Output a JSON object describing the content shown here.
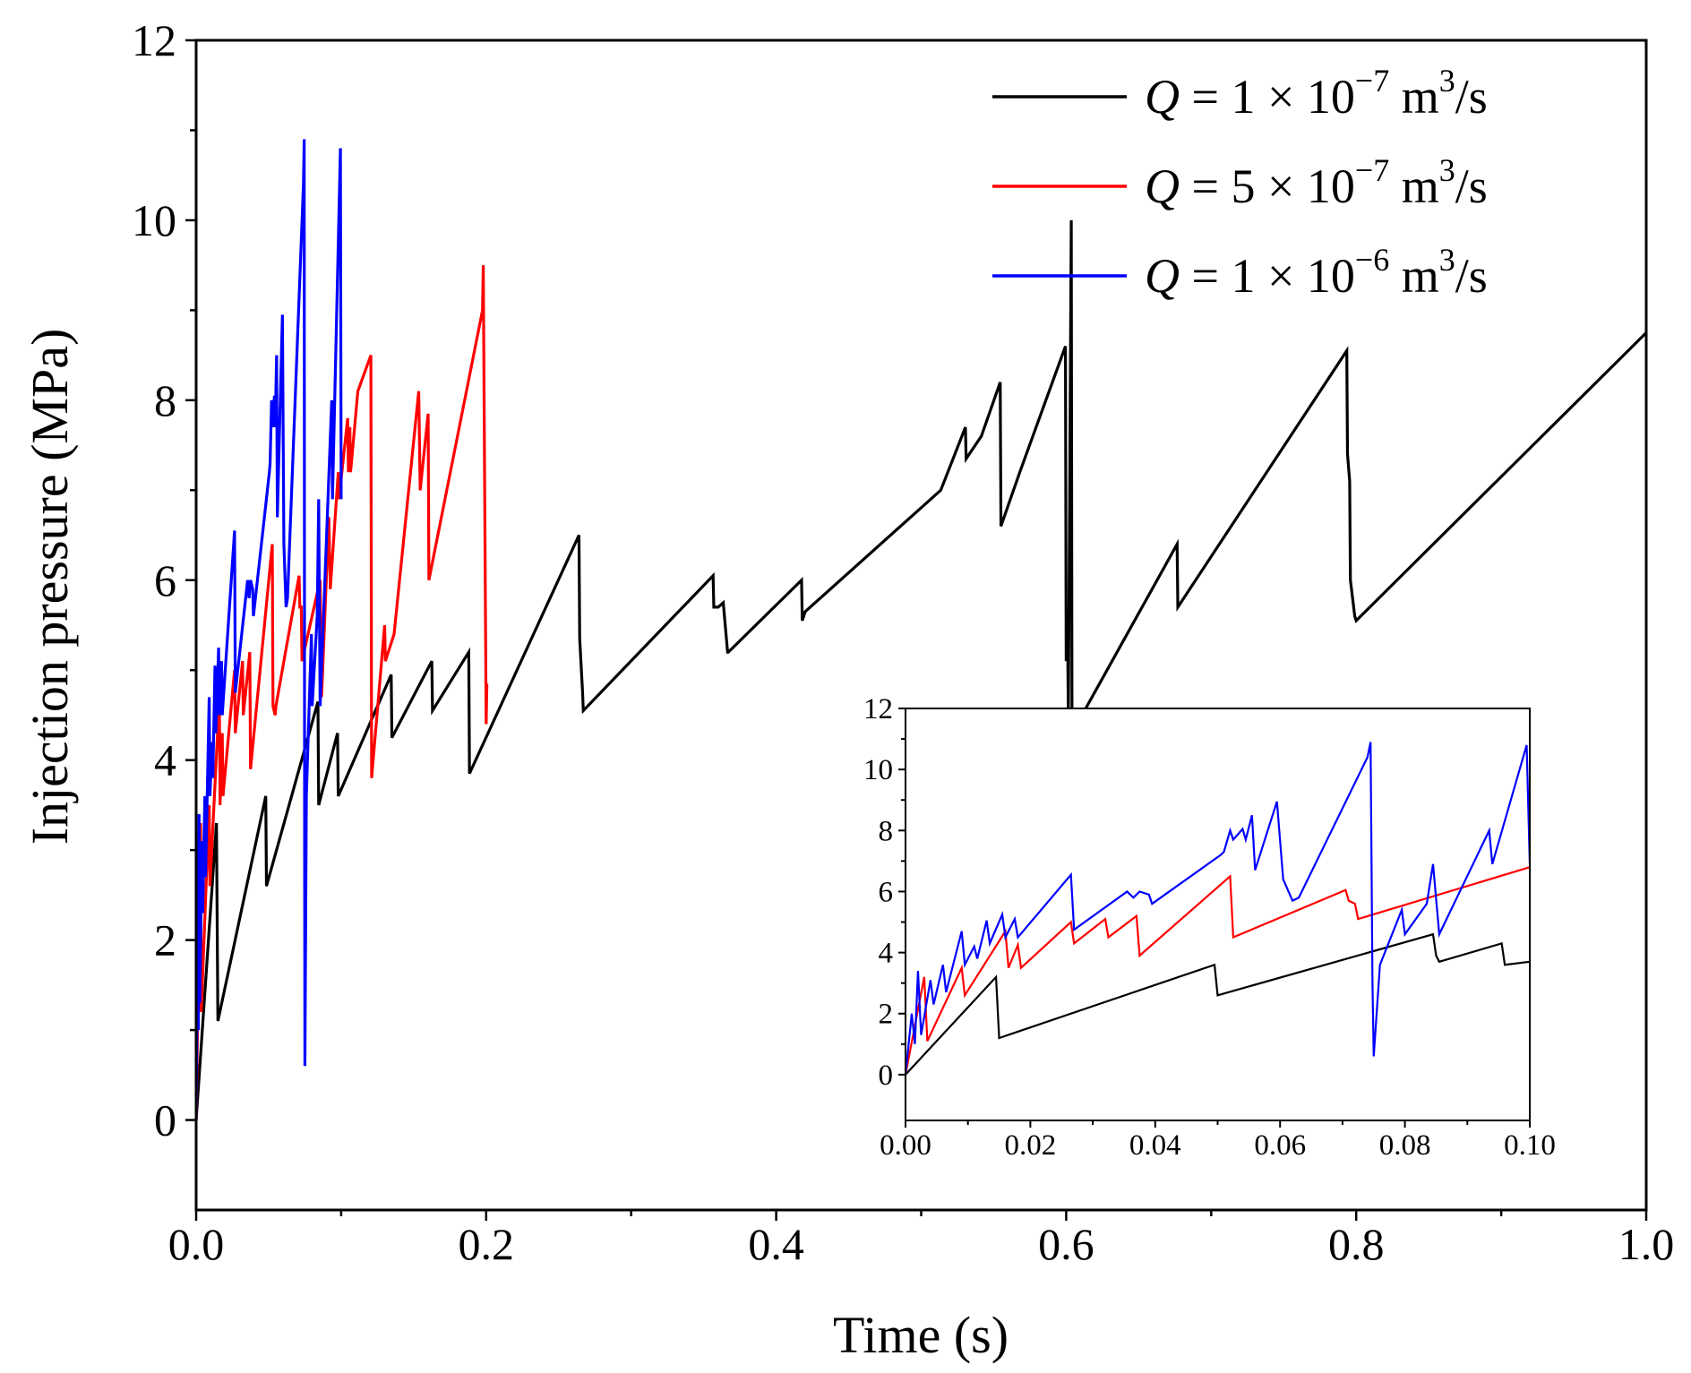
{
  "chart_data": [
    {
      "type": "line",
      "name": "main",
      "xlabel": "Time (s)",
      "ylabel": "Injection pressure (MPa)",
      "xlim": [
        0,
        1.0
      ],
      "ylim": [
        -1,
        12
      ],
      "xticks": [
        0,
        0.2,
        0.4,
        0.6,
        0.8,
        1.0
      ],
      "xtick_labels": [
        "0.0",
        "0.2",
        "0.4",
        "0.6",
        "0.8",
        "1.0"
      ],
      "yticks": [
        0,
        2,
        4,
        6,
        8,
        10,
        12
      ],
      "ytick_labels": [
        "0",
        "2",
        "4",
        "6",
        "8",
        "10",
        "12"
      ],
      "legend_position": "top-right",
      "legend": [
        {
          "prefix": "Q",
          "middle": " = 1 × 10",
          "exp": "−7",
          "unit": " m",
          "unit_exp": "3",
          "tail": "/s",
          "color": "#000000"
        },
        {
          "prefix": "Q",
          "middle": " = 5 × 10",
          "exp": "−7",
          "unit": " m",
          "unit_exp": "3",
          "tail": "/s",
          "color": "#ff0000"
        },
        {
          "prefix": "Q",
          "middle": " = 1 × 10",
          "exp": "−6",
          "unit": " m",
          "unit_exp": "3",
          "tail": "/s",
          "color": "#0000ff"
        }
      ],
      "series": [
        {
          "name": "Q = 1 × 10^-7 m^3/s",
          "color": "#000000",
          "x": [
            0,
            0.014,
            0.015,
            0.048,
            0.0485,
            0.084,
            0.0845,
            0.0975,
            0.098,
            0.1345,
            0.135,
            0.1625,
            0.163,
            0.188,
            0.1885,
            0.264,
            0.2645,
            0.2665,
            0.267,
            0.3565,
            0.357,
            0.36,
            0.3635,
            0.3665,
            0.367,
            0.4175,
            0.418,
            0.42,
            0.5135,
            0.5305,
            0.531,
            0.5415,
            0.5545,
            0.555,
            0.568,
            0.5995,
            0.6,
            0.601,
            0.6015,
            0.6035,
            0.604,
            0.6765,
            0.677,
            0.7935,
            0.794,
            0.7955,
            0.796,
            0.799,
            0.8,
            1.0
          ],
          "y": [
            0,
            3.3,
            1.1,
            3.6,
            2.6,
            4.65,
            3.5,
            4.3,
            3.6,
            4.95,
            4.25,
            5.1,
            4.55,
            5.2,
            3.85,
            6.5,
            5.35,
            4.75,
            4.55,
            6.05,
            5.7,
            5.7,
            5.75,
            5.2,
            5.2,
            6.0,
            5.55,
            5.65,
            7.0,
            7.7,
            7.35,
            7.6,
            8.2,
            6.6,
            7.2,
            8.6,
            5.1,
            5.3,
            4.5,
            10.0,
            4.3,
            6.4,
            5.7,
            8.55,
            7.4,
            7.1,
            6.0,
            5.6,
            5.55,
            8.75
          ]
        },
        {
          "name": "Q = 5 × 10^-7 m^3/s",
          "color": "#ff0000",
          "x": [
            0,
            0.003,
            0.0035,
            0.009,
            0.0095,
            0.016,
            0.0165,
            0.018,
            0.0185,
            0.0265,
            0.027,
            0.032,
            0.0325,
            0.037,
            0.0375,
            0.0525,
            0.053,
            0.0545,
            0.055,
            0.071,
            0.0715,
            0.0725,
            0.073,
            0.0855,
            0.0865,
            0.0915,
            0.0925,
            0.098,
            0.0985,
            0.1045,
            0.105,
            0.106,
            0.1065,
            0.1115,
            0.1205,
            0.121,
            0.13,
            0.1305,
            0.1365,
            0.1535,
            0.1545,
            0.16,
            0.1605,
            0.1975,
            0.198,
            0.2,
            0.2005
          ],
          "y": [
            0,
            3.3,
            1.2,
            3.5,
            2.6,
            4.7,
            3.5,
            4.3,
            3.6,
            5.0,
            4.3,
            5.1,
            4.5,
            5.2,
            3.9,
            6.4,
            4.6,
            4.5,
            4.6,
            6.05,
            5.7,
            5.7,
            5.1,
            6.0,
            4.7,
            6.7,
            5.9,
            7.2,
            6.9,
            7.8,
            7.2,
            7.7,
            7.2,
            8.1,
            8.5,
            3.8,
            5.5,
            5.1,
            5.4,
            8.1,
            7.0,
            7.85,
            6.0,
            9.0,
            9.5,
            4.4,
            4.85
          ]
        },
        {
          "name": "Q = 1 × 10^-6 m^3/s",
          "color": "#0000ff",
          "x": [
            0,
            0.001,
            0.0015,
            0.002,
            0.0025,
            0.004,
            0.0045,
            0.006,
            0.0065,
            0.009,
            0.0095,
            0.011,
            0.0115,
            0.013,
            0.0135,
            0.0155,
            0.016,
            0.0175,
            0.018,
            0.0265,
            0.027,
            0.0355,
            0.0365,
            0.0375,
            0.039,
            0.0395,
            0.0505,
            0.051,
            0.052,
            0.0525,
            0.054,
            0.0545,
            0.0555,
            0.056,
            0.0595,
            0.0605,
            0.062,
            0.063,
            0.074,
            0.0745,
            0.0748,
            0.075,
            0.076,
            0.0795,
            0.08,
            0.0835,
            0.0845,
            0.0855,
            0.0935,
            0.094,
            0.0995,
            0.1
          ],
          "y": [
            0,
            2.0,
            1.0,
            3.4,
            1.3,
            3.1,
            2.3,
            3.6,
            2.7,
            4.7,
            3.6,
            4.2,
            3.8,
            5.05,
            4.3,
            5.25,
            4.5,
            5.1,
            4.5,
            6.55,
            4.75,
            6.0,
            5.8,
            6.0,
            5.9,
            5.6,
            7.2,
            7.3,
            8.0,
            7.7,
            8.05,
            7.7,
            8.5,
            6.7,
            8.95,
            6.4,
            5.7,
            5.8,
            10.4,
            10.9,
            3.0,
            0.6,
            3.6,
            5.4,
            4.6,
            5.6,
            6.9,
            4.6,
            8.0,
            6.9,
            10.8,
            6.9
          ]
        }
      ]
    },
    {
      "type": "line",
      "name": "inset",
      "xlim": [
        0,
        0.1
      ],
      "ylim": [
        -1.5,
        12
      ],
      "xticks": [
        0,
        0.02,
        0.04,
        0.06,
        0.08,
        0.1
      ],
      "xtick_labels": [
        "0.00",
        "0.02",
        "0.04",
        "0.06",
        "0.08",
        "0.10"
      ],
      "yticks": [
        0,
        2,
        4,
        6,
        8,
        10,
        12
      ],
      "ytick_labels": [
        "0",
        "2",
        "4",
        "6",
        "8",
        "10",
        "12"
      ],
      "series": [
        {
          "name": "Q = 1 × 10^-7 m^3/s",
          "color": "#000000",
          "x": [
            0,
            0.0145,
            0.015,
            0.0495,
            0.05,
            0.0845,
            0.085,
            0.0855,
            0.0955,
            0.096,
            0.1
          ],
          "y": [
            0,
            3.2,
            1.2,
            3.6,
            2.6,
            4.6,
            3.9,
            3.7,
            4.3,
            3.6,
            3.7
          ]
        },
        {
          "name": "Q = 5 × 10^-7 m^3/s",
          "color": "#ff0000",
          "x": [
            0,
            0.003,
            0.0035,
            0.009,
            0.0095,
            0.016,
            0.0165,
            0.018,
            0.0185,
            0.0265,
            0.027,
            0.032,
            0.0325,
            0.037,
            0.0375,
            0.052,
            0.0525,
            0.0705,
            0.071,
            0.072,
            0.0725,
            0.1
          ],
          "y": [
            0,
            3.2,
            1.1,
            3.5,
            2.6,
            4.7,
            3.5,
            4.25,
            3.5,
            5.0,
            4.3,
            5.1,
            4.5,
            5.2,
            3.9,
            6.5,
            4.5,
            6.05,
            5.7,
            5.6,
            5.1,
            6.8
          ]
        },
        {
          "name": "Q = 1 × 10^-6 m^3/s",
          "color": "#0000ff",
          "x": [
            0,
            0.001,
            0.0015,
            0.002,
            0.0025,
            0.004,
            0.0045,
            0.006,
            0.0065,
            0.009,
            0.0095,
            0.011,
            0.0115,
            0.013,
            0.0135,
            0.0155,
            0.016,
            0.0175,
            0.018,
            0.0265,
            0.027,
            0.0355,
            0.0365,
            0.0375,
            0.039,
            0.0395,
            0.0505,
            0.051,
            0.052,
            0.0525,
            0.054,
            0.0545,
            0.0555,
            0.056,
            0.0595,
            0.0605,
            0.062,
            0.063,
            0.074,
            0.0745,
            0.0748,
            0.075,
            0.076,
            0.0795,
            0.08,
            0.0835,
            0.0845,
            0.0855,
            0.0935,
            0.094,
            0.0995,
            0.1
          ],
          "y": [
            0,
            2.0,
            1.0,
            3.4,
            1.3,
            3.1,
            2.3,
            3.6,
            2.7,
            4.7,
            3.6,
            4.2,
            3.8,
            5.05,
            4.3,
            5.25,
            4.5,
            5.1,
            4.5,
            6.55,
            4.75,
            6.0,
            5.8,
            6.0,
            5.9,
            5.6,
            7.2,
            7.3,
            8.0,
            7.7,
            8.05,
            7.7,
            8.5,
            6.7,
            8.95,
            6.4,
            5.7,
            5.8,
            10.4,
            10.9,
            3.0,
            0.6,
            3.6,
            5.4,
            4.6,
            5.6,
            6.9,
            4.6,
            8.0,
            6.9,
            10.8,
            6.9
          ]
        }
      ]
    }
  ]
}
